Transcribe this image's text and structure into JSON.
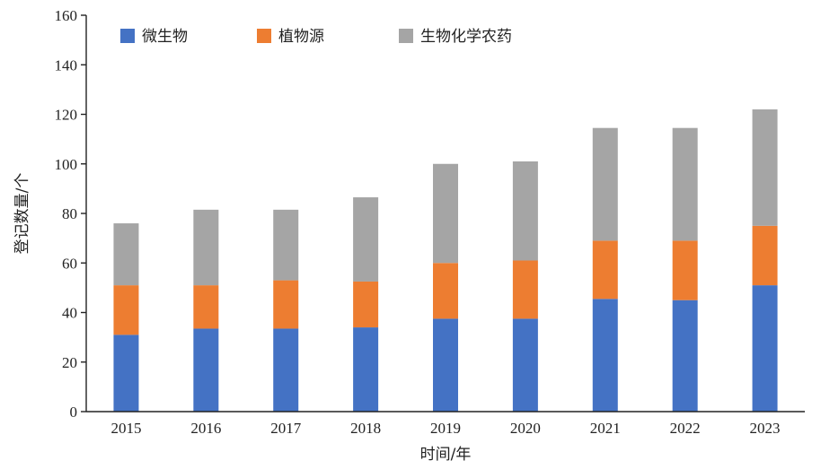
{
  "chart_data": {
    "type": "bar",
    "stacked": true,
    "title": "",
    "xlabel": "时间/年",
    "ylabel": "登记数量/个",
    "ylim": [
      0,
      160
    ],
    "yticks": [
      0,
      20,
      40,
      60,
      80,
      100,
      120,
      140,
      160
    ],
    "grid": false,
    "legend_position": "top",
    "categories": [
      "2015",
      "2016",
      "2017",
      "2018",
      "2019",
      "2020",
      "2021",
      "2022",
      "2023"
    ],
    "series": [
      {
        "name": "微生物",
        "color": "#4472C4",
        "values": [
          31,
          33.5,
          33.5,
          34,
          37.5,
          37.5,
          45.5,
          45,
          51
        ]
      },
      {
        "name": "植物源",
        "color": "#ED7D31",
        "values": [
          20,
          17.5,
          19.5,
          18.5,
          22.5,
          23.5,
          23.5,
          24,
          24
        ]
      },
      {
        "name": "生物化学农药",
        "color": "#A5A5A5",
        "values": [
          25,
          30.5,
          28.5,
          34,
          40,
          40,
          45.5,
          45.5,
          47
        ]
      }
    ]
  }
}
